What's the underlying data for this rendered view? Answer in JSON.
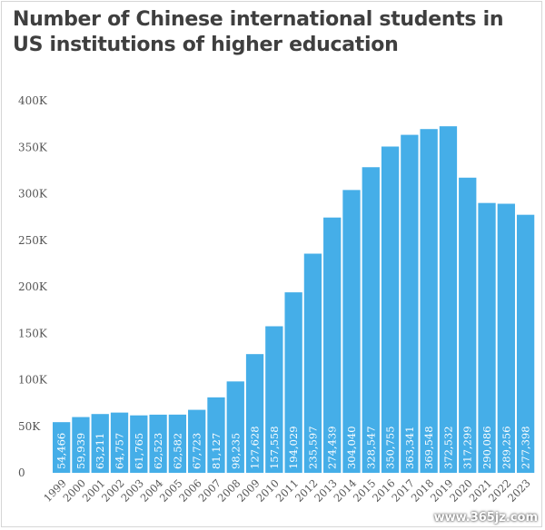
{
  "chart_data": {
    "type": "bar",
    "title": "Number of Chinese international students in US institutions of higher education",
    "xlabel": "",
    "ylabel": "",
    "ylim": [
      0,
      400000
    ],
    "yticks": [
      0,
      50000,
      100000,
      150000,
      200000,
      250000,
      300000,
      350000,
      400000
    ],
    "ytick_labels": [
      "0",
      "50K",
      "100K",
      "150K",
      "200K",
      "250K",
      "300K",
      "350K",
      "400K"
    ],
    "grid": false,
    "bar_color": "#45aee8",
    "categories": [
      "1999",
      "2000",
      "2001",
      "2002",
      "2003",
      "2004",
      "2005",
      "2006",
      "2007",
      "2008",
      "2009",
      "2010",
      "2011",
      "2012",
      "2013",
      "2014",
      "2015",
      "2016",
      "2017",
      "2018",
      "2019",
      "2020",
      "2021",
      "2022",
      "2023"
    ],
    "values": [
      54466,
      59939,
      63211,
      64757,
      61765,
      62523,
      62582,
      67723,
      81127,
      98235,
      127628,
      157558,
      194029,
      235597,
      274439,
      304040,
      328547,
      350755,
      363341,
      369548,
      372532,
      317299,
      290086,
      289256,
      277398
    ],
    "value_labels": [
      "54,466",
      "59,939",
      "63,211",
      "64,757",
      "61,765",
      "62,523",
      "62,582",
      "67,723",
      "81,127",
      "98,235",
      "127,628",
      "157,558",
      "194,029",
      "235,597",
      "274,439",
      "304,040",
      "328,547",
      "350,755",
      "363,341",
      "369,548",
      "372,532",
      "317,299",
      "290,086",
      "289,256",
      "277,398"
    ]
  },
  "watermark": "www.365jz.com"
}
